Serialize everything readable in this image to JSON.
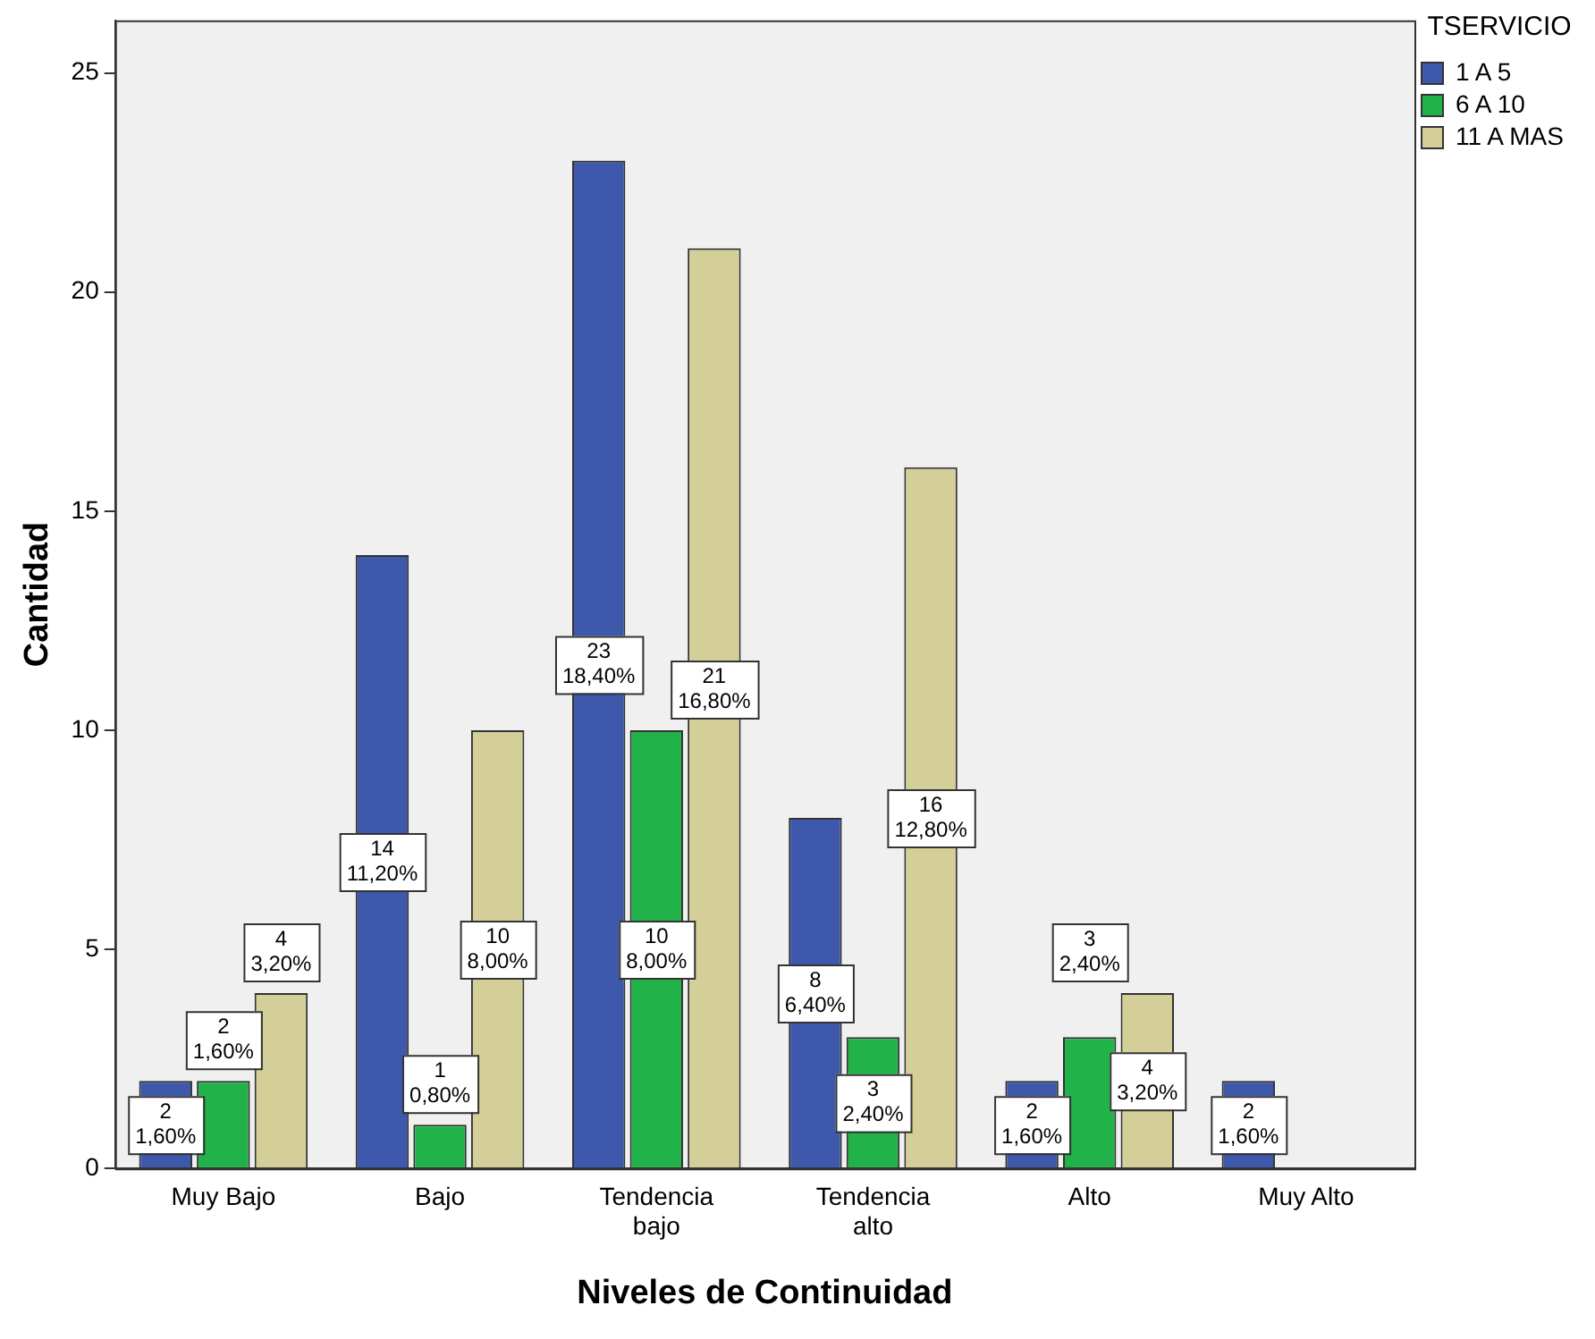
{
  "chart_data": {
    "type": "bar",
    "xlabel": "Niveles de Continuidad",
    "ylabel": "Cantidad",
    "legend_title": "TSERVICIO",
    "legend": "top right",
    "grid": false,
    "categories": [
      "Muy Bajo",
      "Bajo",
      "Tendencia bajo",
      "Tendencia alto",
      "Alto",
      "Muy Alto"
    ],
    "ylim": [
      0,
      26.2
    ],
    "yticks": [
      0,
      5,
      10,
      15,
      20,
      25
    ],
    "series": [
      {
        "name": "1 A 5",
        "color": "#3e58ac",
        "values": [
          2,
          14,
          23,
          8,
          2,
          2
        ],
        "value_labels": [
          "2\n1,60%",
          "14\n11,20%",
          "23\n18,40%",
          "8\n6,40%",
          "2\n1,60%",
          "2\n1,60%"
        ]
      },
      {
        "name": "6 A 10",
        "color": "#21b34a",
        "values": [
          2,
          1,
          10,
          3,
          3,
          null
        ],
        "value_labels": [
          "2\n1,60%",
          "1\n0,80%",
          "10\n8,00%",
          "3\n2,40%",
          "3\n2,40%",
          null
        ]
      },
      {
        "name": "11 A MAS",
        "color": "#d4cf98",
        "values": [
          4,
          10,
          21,
          16,
          4,
          null
        ],
        "value_labels": [
          "4\n3,20%",
          "10\n8,00%",
          "21\n16,80%",
          "16\n12,80%",
          "4\n3,20%",
          null
        ]
      }
    ]
  }
}
